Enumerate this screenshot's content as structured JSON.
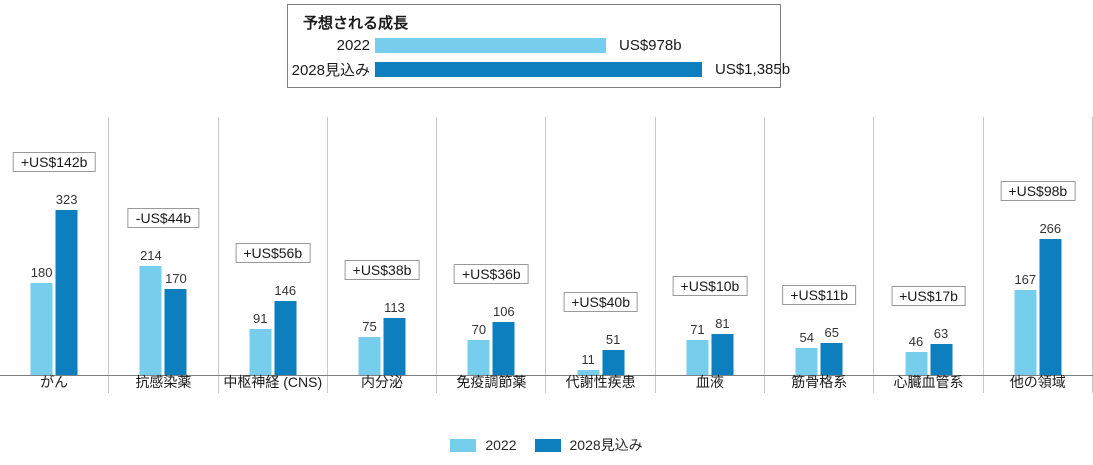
{
  "colors": {
    "series1": "#76CDEC",
    "series2": "#0D7EBE",
    "separator": "#C9C9C9",
    "axis": "#7F7F7F"
  },
  "summary_box": {
    "title": "予想される成長",
    "rows": [
      {
        "label": "2022",
        "value": 978,
        "value_label": "US$978b",
        "color_key": "series1"
      },
      {
        "label": "2028見込み",
        "value": 1385,
        "value_label": "US$1,385b",
        "color_key": "series2"
      }
    ]
  },
  "legend": {
    "items": [
      {
        "label": "2022",
        "color_key": "series1"
      },
      {
        "label": "2028見込み",
        "color_key": "series2"
      }
    ]
  },
  "chart_data": {
    "type": "bar",
    "title": "予想される成長",
    "categories": [
      "がん",
      "抗感染薬",
      "中枢神経 (CNS)",
      "内分泌",
      "免疫調節薬",
      "代謝性疾患",
      "血液",
      "筋骨格系",
      "心臓血管系",
      "他の領域"
    ],
    "series": [
      {
        "name": "2022",
        "values": [
          180,
          214,
          91,
          75,
          70,
          11,
          71,
          54,
          46,
          167
        ]
      },
      {
        "name": "2028見込み",
        "values": [
          323,
          170,
          146,
          113,
          106,
          51,
          81,
          65,
          63,
          266
        ]
      }
    ],
    "growth_labels": [
      "+US$142b",
      "-US$44b",
      "+US$56b",
      "+US$38b",
      "+US$36b",
      "+US$40b",
      "+US$10b",
      "+US$11b",
      "+US$17b",
      "+US$98b"
    ],
    "totals": {
      "2022": "US$978b",
      "2028見込み": "US$1,385b"
    },
    "unit": "US$ billions",
    "ylim": [
      0,
      340
    ],
    "xlabel": "",
    "ylabel": "",
    "grid": "vertical category separators only",
    "legend_position": "bottom"
  }
}
